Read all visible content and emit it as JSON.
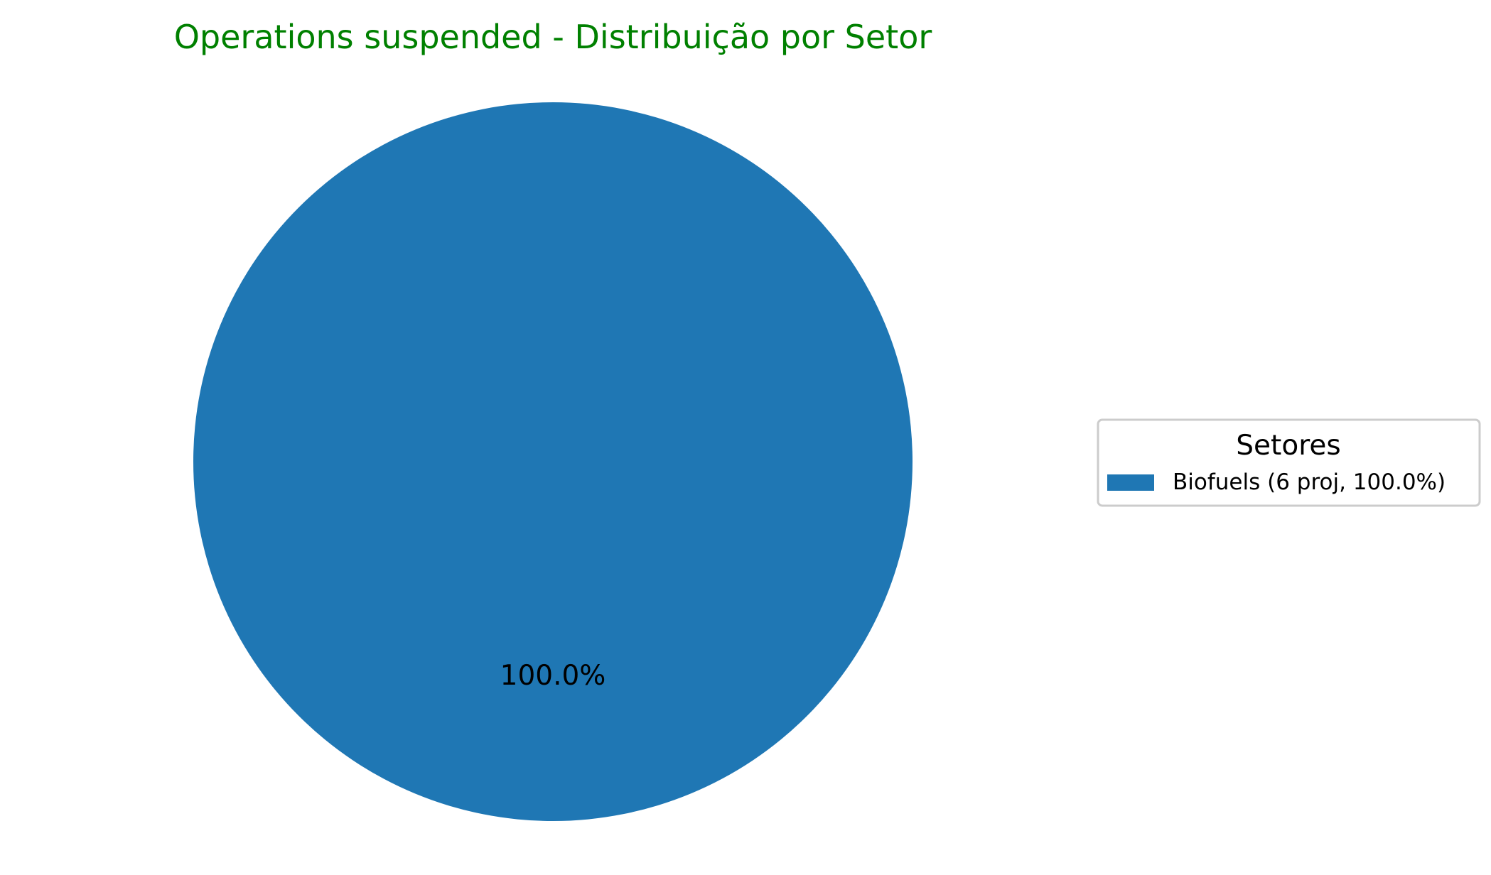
{
  "chart_data": {
    "type": "pie",
    "title": "Operations suspended - Distribuição por Setor",
    "title_color": "#008000",
    "categories": [
      "Biofuels"
    ],
    "values": [
      6
    ],
    "percent_labels": [
      "100.0%"
    ],
    "colors": [
      "#1f77b4"
    ],
    "legend": {
      "title": "Setores",
      "placement": "center-right",
      "entries": [
        "Biofuels (6 proj, 100.0%)"
      ]
    }
  }
}
